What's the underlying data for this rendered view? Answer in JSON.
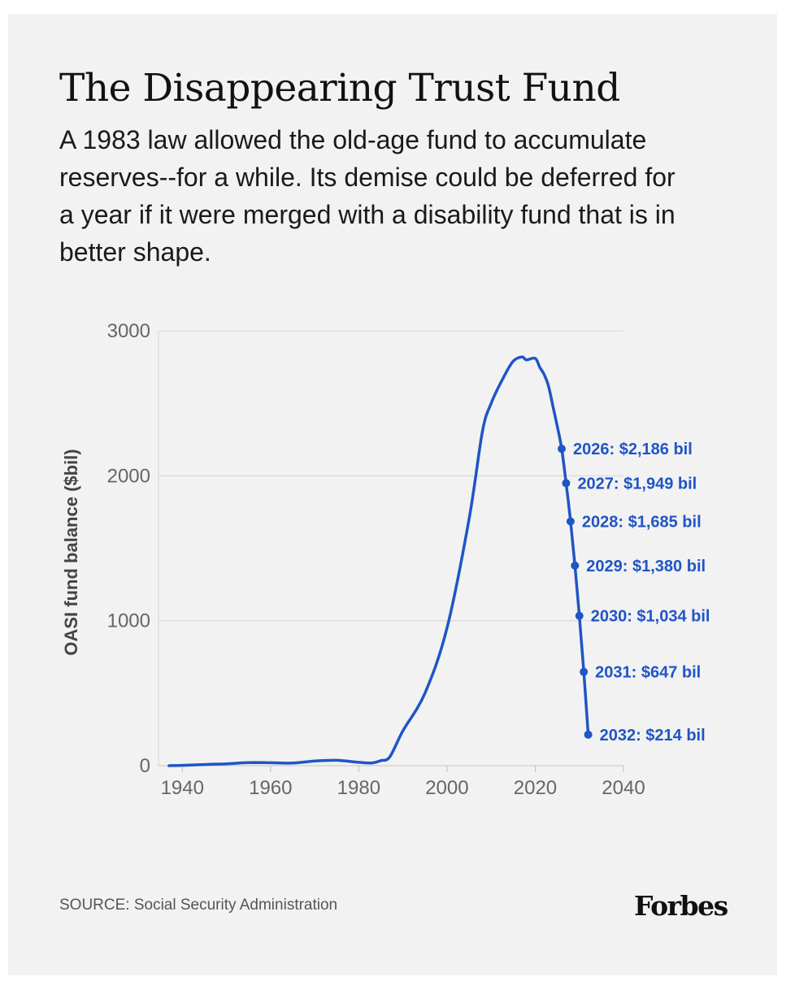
{
  "header": {
    "title": "The Disappearing Trust Fund",
    "subtitle": "A 1983 law allowed the old-age fund to accumulate reserves--for a while. Its demise could be deferred for a year if it were merged with a disability fund that is in better shape."
  },
  "chart_data": {
    "type": "line",
    "ylabel": "OASI fund balance ($bil)",
    "xlabel": "",
    "xlim": [
      1937,
      2040
    ],
    "ylim": [
      0,
      3000
    ],
    "xticks": [
      "1940",
      "1960",
      "1980",
      "2000",
      "2020",
      "2040"
    ],
    "yticks": [
      "0",
      "1000",
      "2000",
      "3000"
    ],
    "grid": true,
    "line_color": "#1f55c6",
    "series": [
      {
        "name": "OASI fund balance",
        "x": [
          1937,
          1940,
          1945,
          1950,
          1955,
          1960,
          1965,
          1970,
          1975,
          1980,
          1983,
          1985,
          1987,
          1990,
          1995,
          2000,
          2005,
          2008,
          2010,
          2013,
          2015,
          2017,
          2018,
          2020,
          2021,
          2022,
          2023,
          2024,
          2025,
          2026,
          2027,
          2028,
          2029,
          2030,
          2031,
          2032
        ],
        "y": [
          0,
          2,
          8,
          13,
          21,
          20,
          18,
          32,
          37,
          23,
          19,
          35,
          60,
          240,
          500,
          950,
          1700,
          2300,
          2500,
          2690,
          2790,
          2820,
          2800,
          2810,
          2750,
          2700,
          2620,
          2480,
          2340,
          2186,
          1949,
          1685,
          1380,
          1034,
          647,
          214
        ]
      }
    ],
    "annotations": [
      {
        "x": 2026,
        "y": 2186,
        "label": "2026: $2,186 bil"
      },
      {
        "x": 2027,
        "y": 1949,
        "label": "2027: $1,949 bil"
      },
      {
        "x": 2028,
        "y": 1685,
        "label": "2028: $1,685 bil"
      },
      {
        "x": 2029,
        "y": 1380,
        "label": "2029: $1,380 bil"
      },
      {
        "x": 2030,
        "y": 1034,
        "label": "2030: $1,034 bil"
      },
      {
        "x": 2031,
        "y": 647,
        "label": "2031: $647 bil"
      },
      {
        "x": 2032,
        "y": 214,
        "label": "2032: $214 bil"
      }
    ]
  },
  "footer": {
    "source": "SOURCE: Social Security Administration",
    "logo": "Forbes"
  }
}
